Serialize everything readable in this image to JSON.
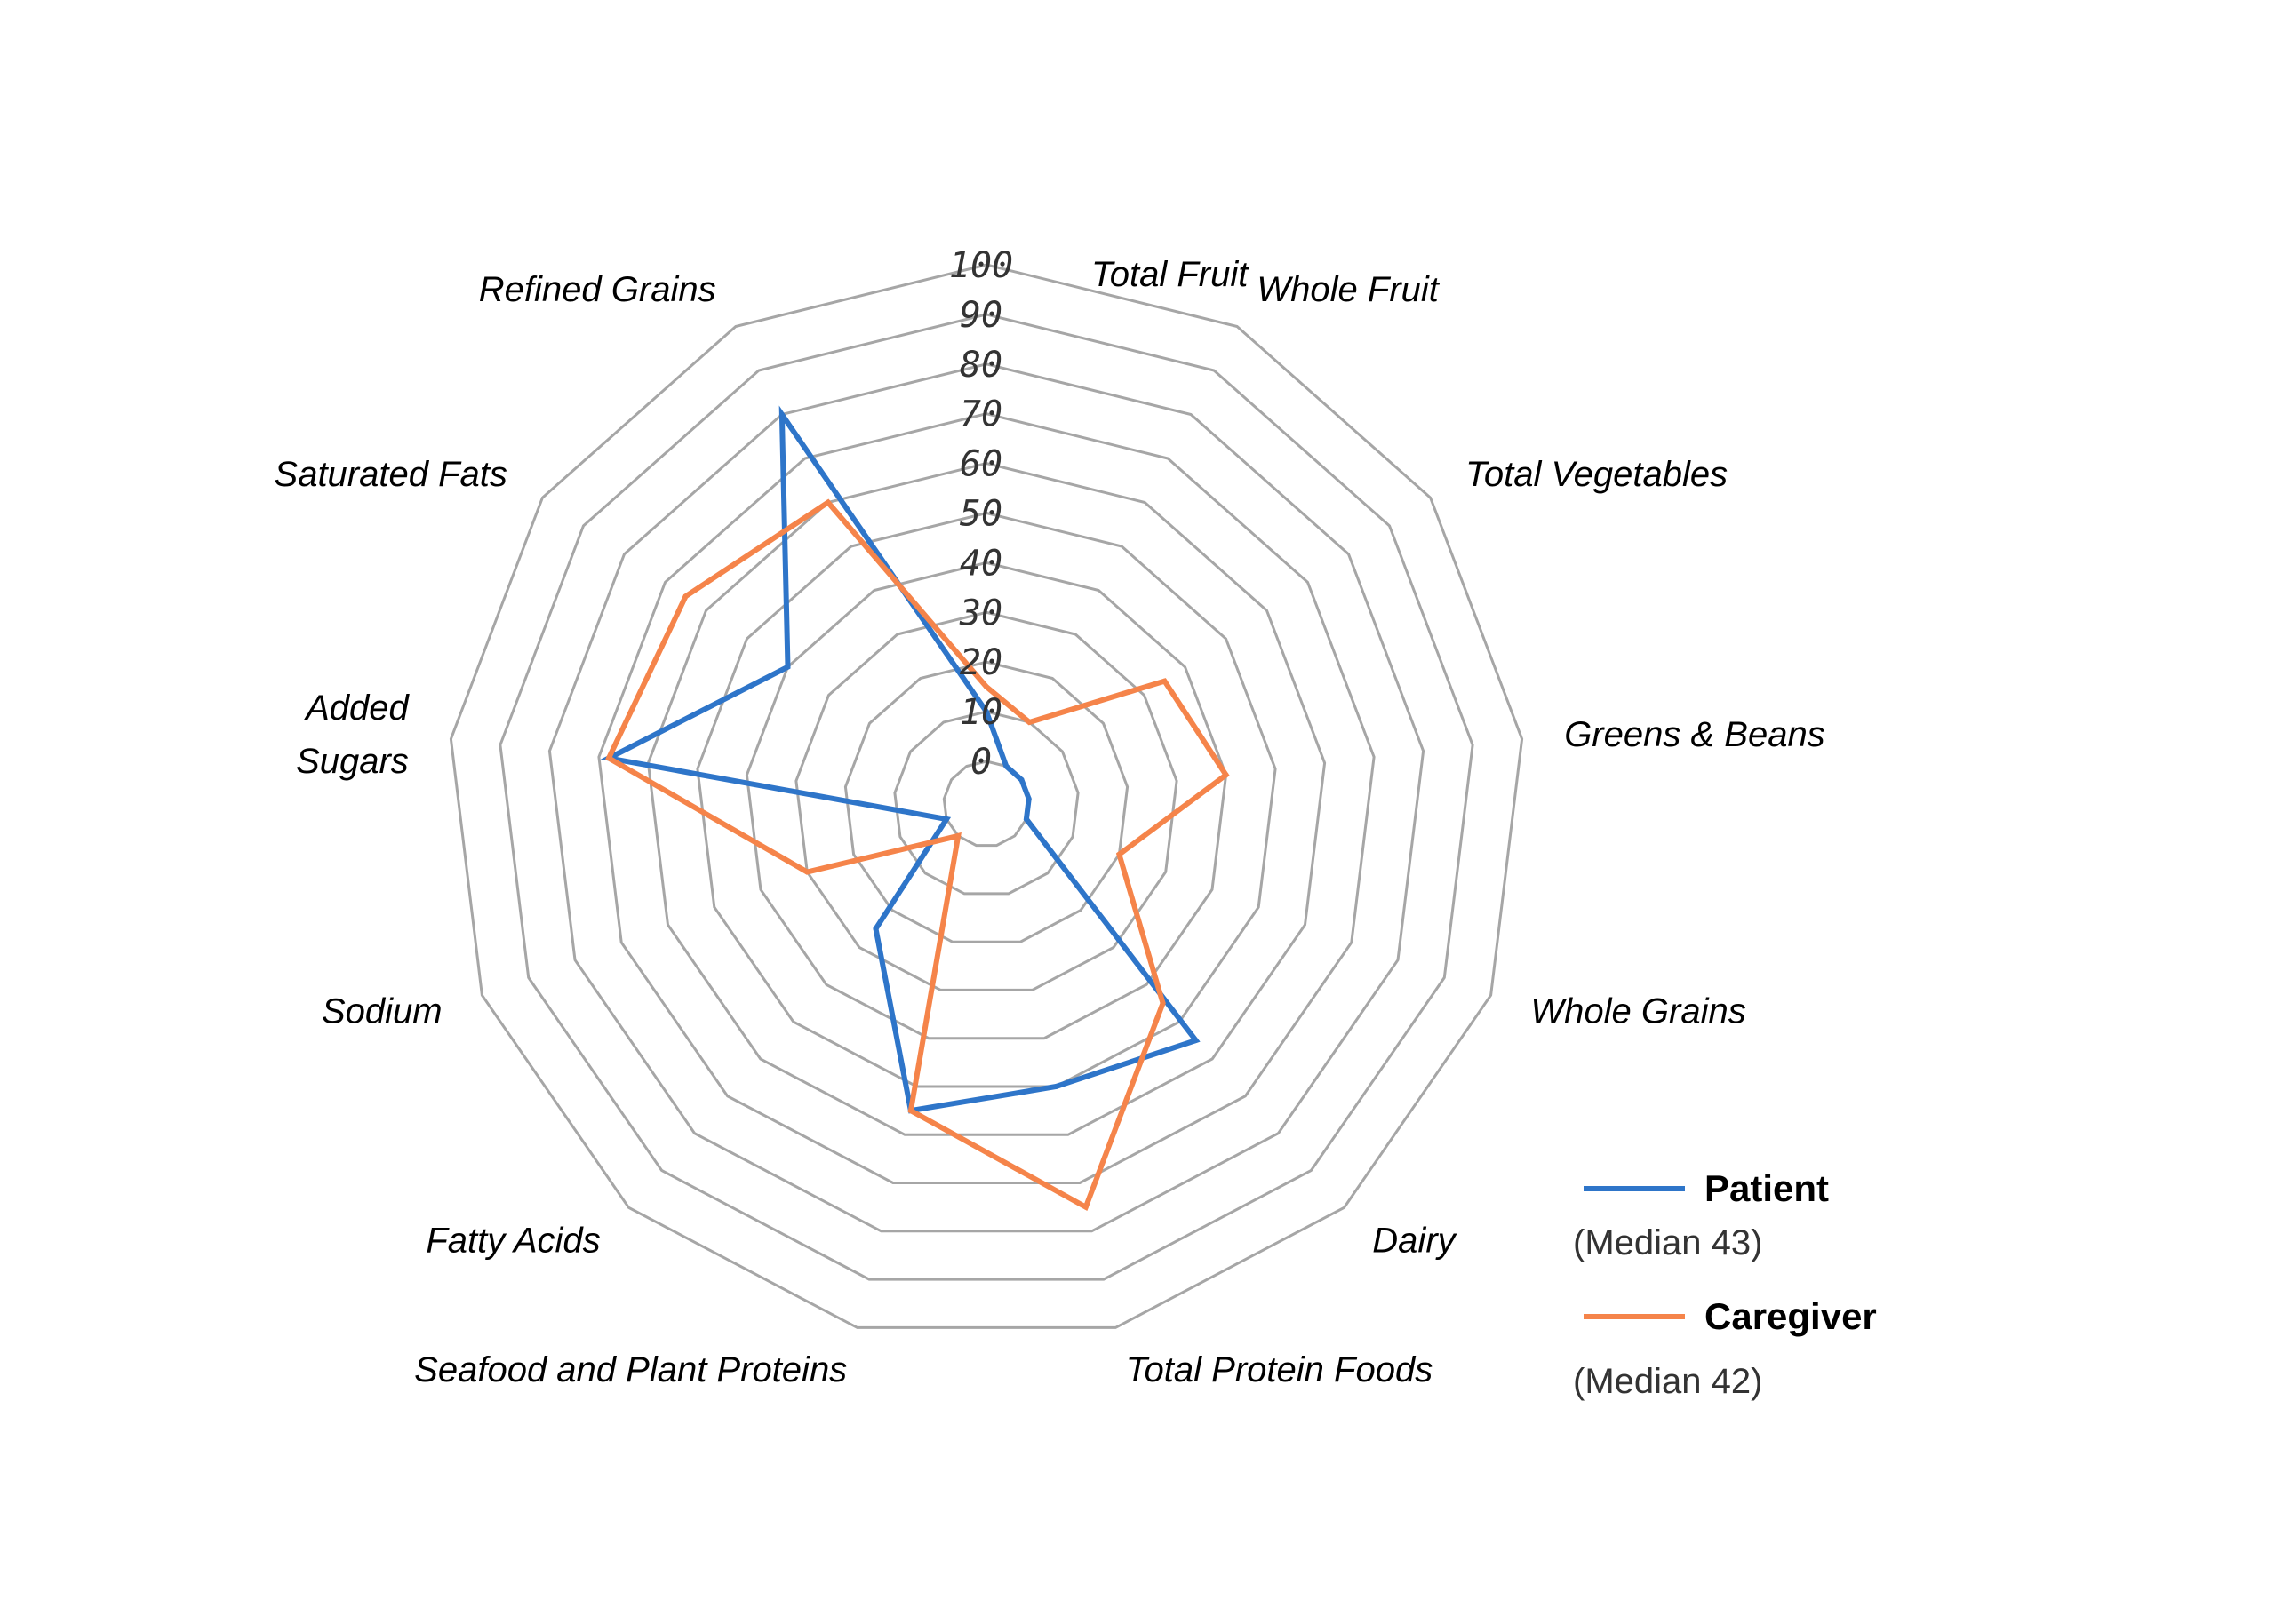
{
  "chart_data": {
    "type": "radar",
    "categories": [
      "Total Fruit",
      "Whole Fruit",
      "Total Vegetables",
      "Greens & Beans",
      "Whole Grains",
      "Dairy",
      "Total Protein Foods",
      "Seafood and Plant Proteins",
      "Fatty Acids",
      "Sodium",
      "Added Sugars",
      "Saturated Fats",
      "Refined Grains"
    ],
    "category_lines": [
      [
        "Total Fruit"
      ],
      [
        "Whole Fruit"
      ],
      [
        "Total Vegetables"
      ],
      [
        "Greens & Beans"
      ],
      [
        "Whole Grains"
      ],
      [
        "Dairy"
      ],
      [
        "Total Protein Foods"
      ],
      [
        "Seafood and Plant Proteins"
      ],
      [
        "Fatty Acids"
      ],
      [
        "Sodium"
      ],
      [
        "Added",
        "Sugars"
      ],
      [
        "Saturated Fats"
      ],
      [
        "Refined Grains"
      ]
    ],
    "rlim": [
      0,
      100
    ],
    "ticks": [
      "0",
      "10",
      "20",
      "30",
      "40",
      "50",
      "60",
      "70",
      "80",
      "90",
      "100"
    ],
    "series": [
      {
        "name": "Patient",
        "note": "(Median 43)",
        "color": "#2e75c9",
        "values": [
          10,
          0,
          0,
          0,
          0,
          55,
          50,
          55,
          25,
          0,
          68,
          40,
          80
        ]
      },
      {
        "name": "Caregiver",
        "note": "(Median 42)",
        "color": "#f5844a",
        "values": [
          15,
          10,
          35,
          40,
          20,
          45,
          75,
          55,
          0,
          30,
          68,
          65,
          60
        ]
      }
    ],
    "grid": true,
    "legend_position": "bottom-right"
  }
}
